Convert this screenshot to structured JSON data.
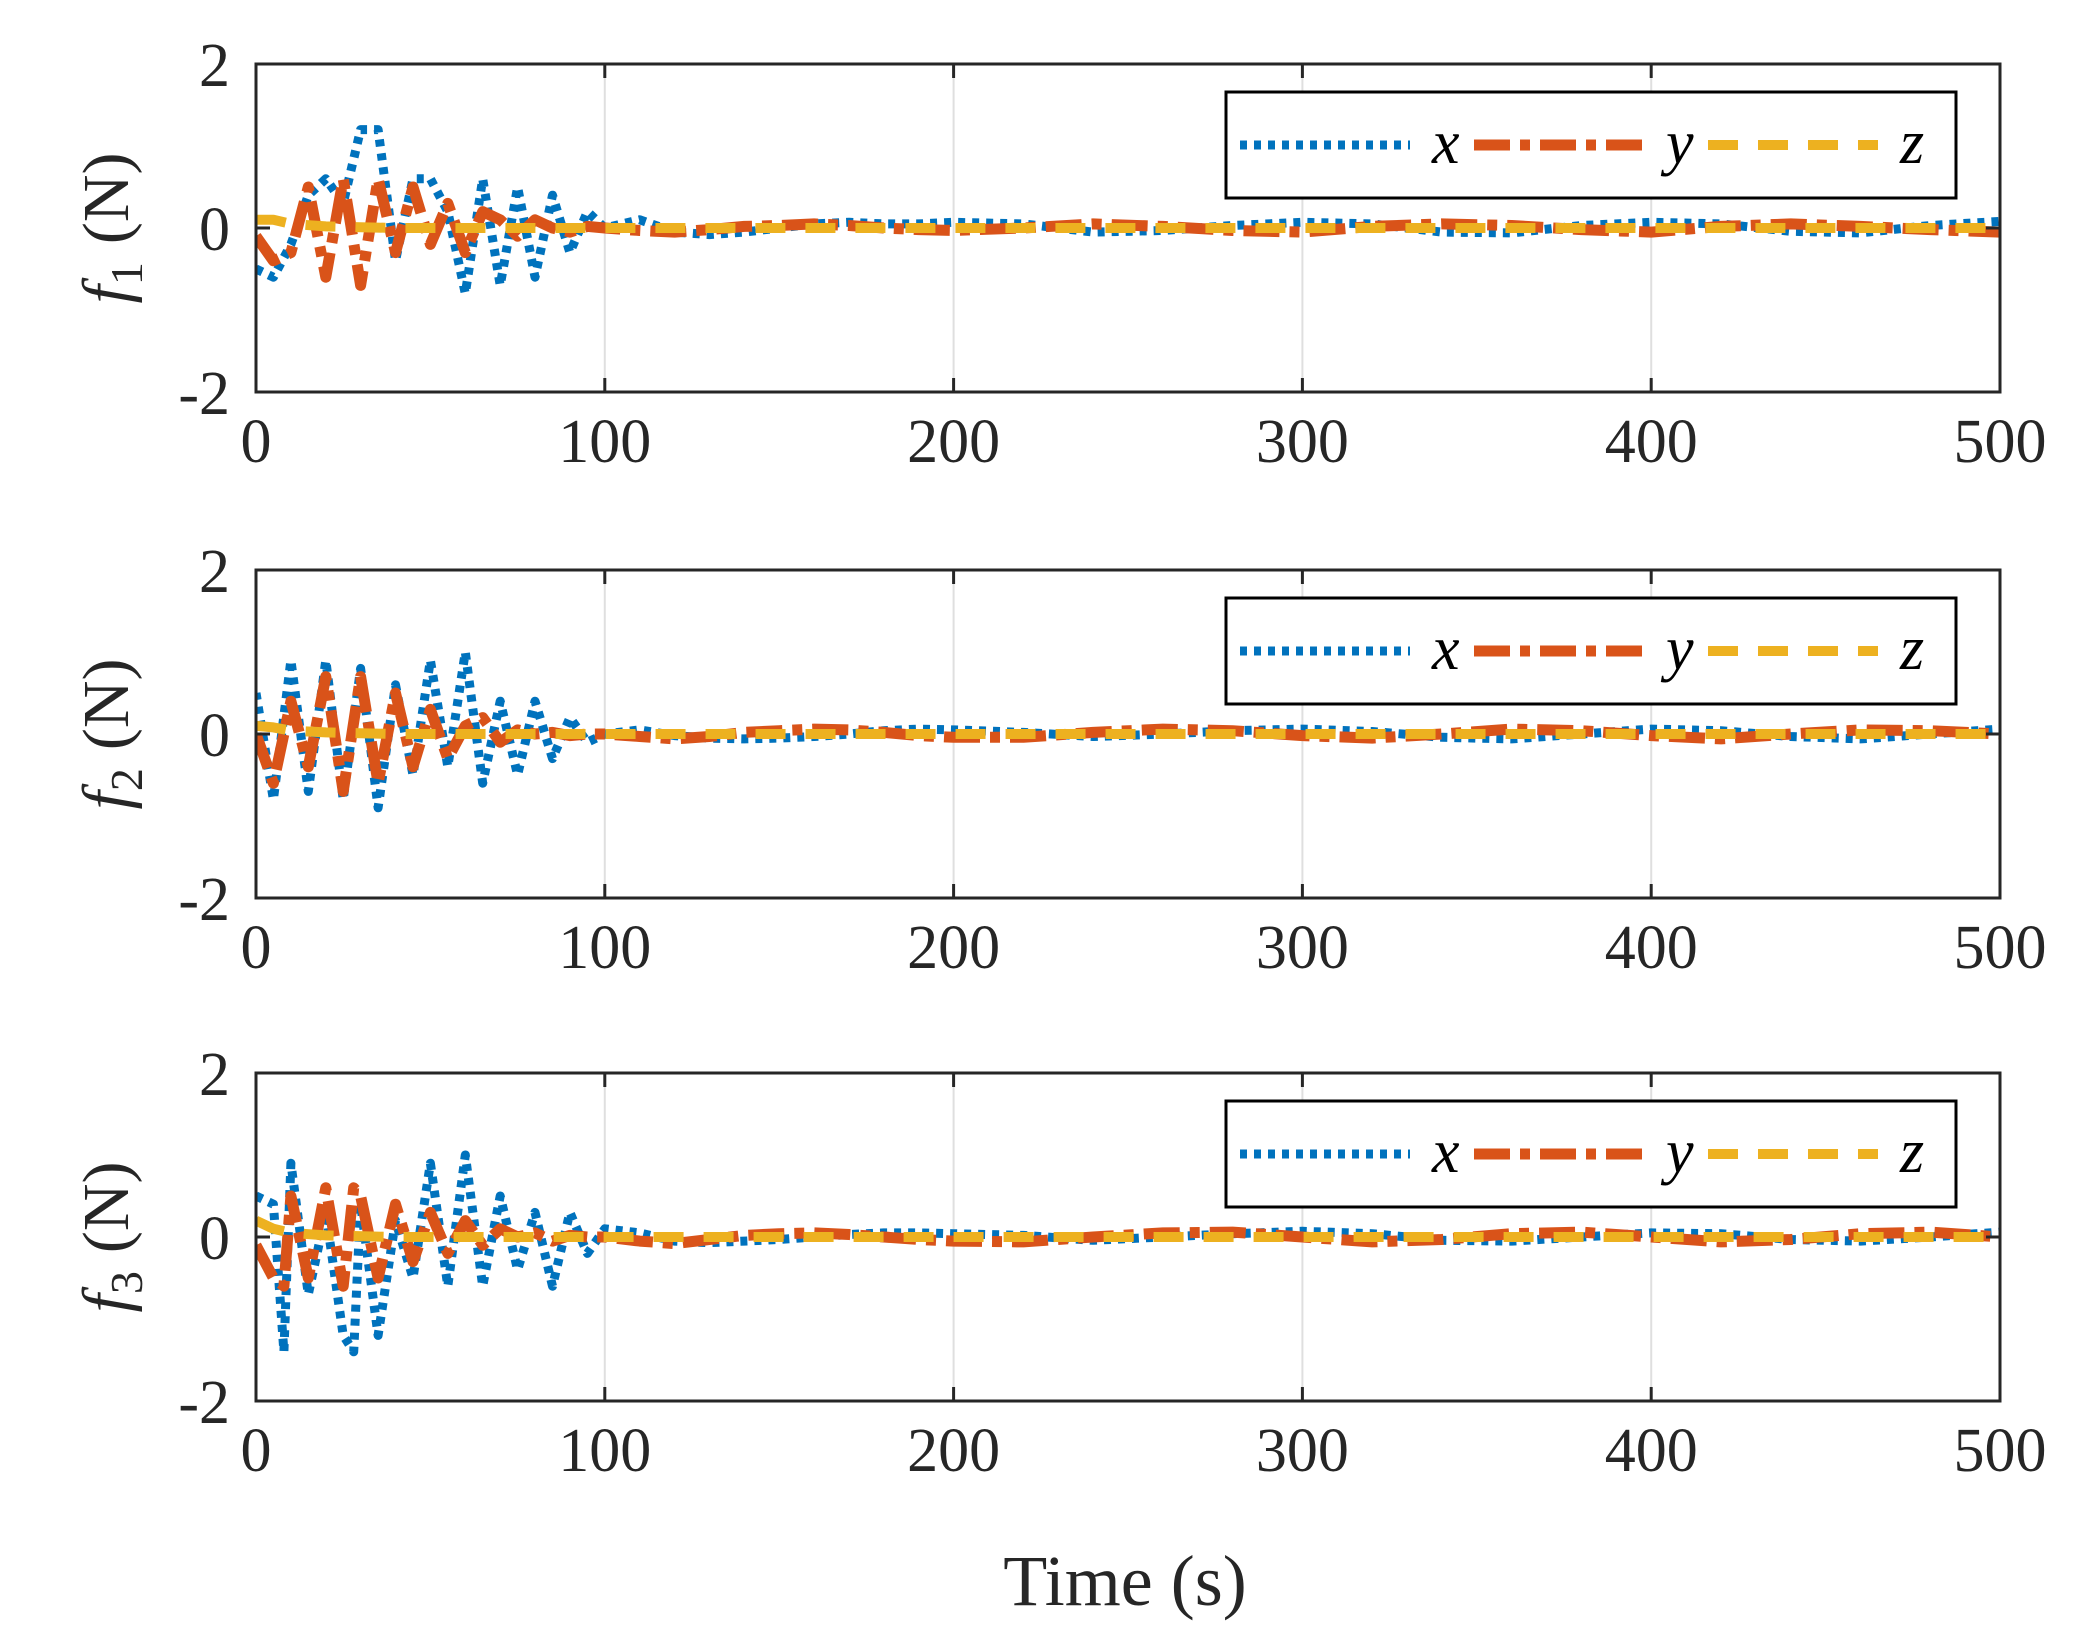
{
  "chart_data": [
    {
      "type": "line",
      "ylabel_symbol": "f",
      "ylabel_subscript": "1",
      "ylabel_unit": "(N)",
      "xlim": [
        0,
        500
      ],
      "ylim": [
        -2,
        2
      ],
      "xticks": [
        "0",
        "100",
        "200",
        "300",
        "400",
        "500"
      ],
      "yticks": [
        "2",
        "0",
        "-2"
      ],
      "legend": [
        "x",
        "y",
        "z"
      ],
      "legend_position": "top-right",
      "grid_x": true,
      "series": [
        {
          "name": "x",
          "x": [
            0,
            5,
            10,
            15,
            20,
            25,
            30,
            35,
            40,
            45,
            50,
            55,
            60,
            65,
            70,
            75,
            80,
            85,
            90,
            95,
            100,
            110,
            120,
            130,
            140,
            150,
            160,
            170,
            180,
            190,
            200,
            220,
            240,
            260,
            280,
            300,
            320,
            340,
            360,
            380,
            400,
            420,
            440,
            460,
            480,
            500
          ],
          "y": [
            -0.5,
            -0.6,
            -0.2,
            0.4,
            0.6,
            0.3,
            1.2,
            1.2,
            -0.4,
            0.6,
            0.6,
            0.2,
            -0.8,
            0.6,
            -0.7,
            0.5,
            -0.6,
            0.4,
            -0.3,
            0.2,
            0.0,
            0.1,
            -0.05,
            -0.08,
            -0.05,
            0.0,
            0.05,
            0.07,
            0.05,
            0.05,
            0.07,
            0.05,
            -0.05,
            -0.03,
            0.03,
            0.07,
            0.05,
            -0.05,
            -0.06,
            0.03,
            0.07,
            0.05,
            -0.04,
            -0.06,
            0.03,
            0.08
          ]
        },
        {
          "name": "y",
          "x": [
            0,
            5,
            10,
            15,
            20,
            25,
            30,
            35,
            40,
            45,
            50,
            55,
            60,
            65,
            70,
            75,
            80,
            85,
            90,
            95,
            100,
            110,
            120,
            130,
            140,
            150,
            160,
            170,
            180,
            190,
            200,
            220,
            240,
            260,
            280,
            300,
            320,
            340,
            360,
            380,
            400,
            420,
            440,
            460,
            480,
            500
          ],
          "y": [
            -0.1,
            -0.4,
            -0.3,
            0.5,
            -0.6,
            0.6,
            -0.7,
            0.6,
            -0.3,
            0.5,
            -0.2,
            0.3,
            -0.3,
            0.2,
            0.1,
            -0.1,
            0.1,
            0.0,
            -0.05,
            0.02,
            0.0,
            -0.03,
            -0.05,
            -0.02,
            0.02,
            0.03,
            0.05,
            0.03,
            0.0,
            -0.02,
            -0.03,
            0.0,
            0.05,
            0.02,
            -0.03,
            -0.05,
            0.02,
            0.05,
            0.03,
            -0.02,
            -0.05,
            0.02,
            0.05,
            0.02,
            -0.02,
            -0.05
          ]
        },
        {
          "name": "z",
          "x": [
            0,
            5,
            10,
            20,
            40,
            60,
            80,
            100,
            150,
            200,
            250,
            300,
            350,
            400,
            450,
            500
          ],
          "y": [
            0.1,
            0.1,
            0.05,
            0.02,
            0.0,
            0.0,
            0.0,
            0.0,
            0.0,
            0.0,
            0.0,
            0.0,
            0.0,
            0.0,
            0.0,
            0.0
          ]
        }
      ]
    },
    {
      "type": "line",
      "ylabel_symbol": "f",
      "ylabel_subscript": "2",
      "ylabel_unit": "(N)",
      "xlim": [
        0,
        500
      ],
      "ylim": [
        -2,
        2
      ],
      "xticks": [
        "0",
        "100",
        "200",
        "300",
        "400",
        "500"
      ],
      "yticks": [
        "2",
        "0",
        "-2"
      ],
      "legend": [
        "x",
        "y",
        "z"
      ],
      "legend_position": "top-right",
      "grid_x": true,
      "series": [
        {
          "name": "x",
          "x": [
            0,
            5,
            10,
            15,
            20,
            25,
            30,
            35,
            40,
            45,
            50,
            55,
            60,
            65,
            70,
            75,
            80,
            85,
            90,
            95,
            100,
            110,
            120,
            130,
            140,
            150,
            160,
            170,
            180,
            190,
            200,
            220,
            240,
            260,
            280,
            300,
            320,
            340,
            360,
            380,
            400,
            420,
            440,
            460,
            480,
            500
          ],
          "y": [
            0.5,
            -0.8,
            0.9,
            -0.7,
            0.9,
            -0.8,
            0.8,
            -0.9,
            0.6,
            -0.5,
            0.9,
            -0.4,
            1.0,
            -0.6,
            0.4,
            -0.5,
            0.4,
            -0.3,
            0.2,
            -0.1,
            0.0,
            0.05,
            -0.02,
            -0.05,
            -0.06,
            -0.05,
            -0.03,
            0.0,
            0.04,
            0.06,
            0.05,
            0.02,
            -0.03,
            0.0,
            0.04,
            0.06,
            0.03,
            -0.04,
            -0.06,
            0.0,
            0.06,
            0.04,
            -0.03,
            -0.06,
            0.0,
            0.06
          ]
        },
        {
          "name": "y",
          "x": [
            0,
            5,
            10,
            15,
            20,
            25,
            30,
            35,
            40,
            45,
            50,
            55,
            60,
            65,
            70,
            75,
            80,
            85,
            90,
            95,
            100,
            110,
            120,
            130,
            140,
            150,
            160,
            170,
            180,
            190,
            200,
            220,
            240,
            260,
            280,
            300,
            320,
            340,
            360,
            380,
            400,
            420,
            440,
            460,
            480,
            500
          ],
          "y": [
            0.0,
            -0.6,
            0.4,
            -0.4,
            0.7,
            -0.7,
            0.7,
            -0.6,
            0.5,
            -0.4,
            0.3,
            -0.3,
            0.1,
            0.2,
            -0.1,
            0.05,
            0.0,
            0.02,
            -0.02,
            0.0,
            0.0,
            -0.03,
            -0.06,
            -0.03,
            0.02,
            0.04,
            0.06,
            0.05,
            0.02,
            -0.02,
            -0.04,
            -0.04,
            0.02,
            0.06,
            0.04,
            -0.02,
            -0.05,
            0.0,
            0.06,
            0.04,
            -0.02,
            -0.06,
            0.0,
            0.05,
            0.04,
            0.0
          ]
        },
        {
          "name": "z",
          "x": [
            0,
            5,
            10,
            20,
            40,
            60,
            80,
            100,
            150,
            200,
            250,
            300,
            350,
            400,
            450,
            500
          ],
          "y": [
            0.1,
            0.08,
            0.04,
            0.02,
            0.0,
            0.0,
            0.0,
            0.0,
            0.0,
            0.0,
            0.0,
            0.0,
            0.0,
            0.0,
            0.0,
            0.0
          ]
        }
      ]
    },
    {
      "type": "line",
      "ylabel_symbol": "f",
      "ylabel_subscript": "3",
      "ylabel_unit": "(N)",
      "xlabel": "Time (s)",
      "xlim": [
        0,
        500
      ],
      "ylim": [
        -2,
        2
      ],
      "xticks": [
        "0",
        "100",
        "200",
        "300",
        "400",
        "500"
      ],
      "yticks": [
        "2",
        "0",
        "-2"
      ],
      "legend": [
        "x",
        "y",
        "z"
      ],
      "legend_position": "top-right",
      "grid_x": true,
      "series": [
        {
          "name": "x",
          "x": [
            0,
            5,
            8,
            10,
            15,
            20,
            25,
            28,
            30,
            35,
            40,
            45,
            50,
            55,
            60,
            65,
            70,
            75,
            80,
            85,
            90,
            95,
            100,
            110,
            120,
            130,
            140,
            150,
            160,
            170,
            180,
            190,
            200,
            220,
            240,
            260,
            280,
            300,
            320,
            340,
            360,
            380,
            400,
            420,
            440,
            460,
            480,
            500
          ],
          "y": [
            0.5,
            0.4,
            -1.4,
            0.9,
            -0.7,
            0.3,
            -1.2,
            -1.4,
            0.4,
            -1.2,
            0.2,
            -0.5,
            0.9,
            -0.6,
            1.0,
            -0.6,
            0.5,
            -0.4,
            0.3,
            -0.6,
            0.3,
            -0.2,
            0.1,
            0.05,
            -0.05,
            -0.07,
            -0.05,
            -0.03,
            0.0,
            0.03,
            0.05,
            0.05,
            0.04,
            0.02,
            -0.04,
            0.0,
            0.04,
            0.07,
            0.04,
            -0.04,
            -0.05,
            0.0,
            0.05,
            0.04,
            -0.03,
            -0.05,
            0.0,
            0.06
          ]
        },
        {
          "name": "y",
          "x": [
            0,
            5,
            8,
            10,
            15,
            20,
            25,
            28,
            30,
            35,
            40,
            45,
            50,
            55,
            60,
            65,
            70,
            75,
            80,
            85,
            90,
            95,
            100,
            110,
            120,
            130,
            140,
            150,
            160,
            170,
            180,
            190,
            200,
            220,
            240,
            260,
            280,
            300,
            320,
            340,
            360,
            380,
            400,
            420,
            440,
            460,
            480,
            500
          ],
          "y": [
            -0.1,
            -0.5,
            -0.6,
            0.5,
            -0.5,
            0.6,
            -0.6,
            0.6,
            0.5,
            -0.5,
            0.4,
            -0.3,
            0.3,
            -0.2,
            0.2,
            -0.1,
            0.1,
            0.0,
            0.05,
            -0.05,
            0.02,
            0.0,
            0.0,
            -0.05,
            -0.08,
            -0.03,
            0.02,
            0.04,
            0.05,
            0.03,
            0.0,
            -0.03,
            -0.05,
            -0.06,
            0.0,
            0.05,
            0.06,
            0.0,
            -0.06,
            -0.03,
            0.04,
            0.06,
            0.0,
            -0.06,
            -0.03,
            0.04,
            0.06,
            0.0
          ]
        },
        {
          "name": "z",
          "x": [
            0,
            5,
            10,
            20,
            40,
            60,
            80,
            100,
            150,
            200,
            250,
            300,
            350,
            400,
            450,
            500
          ],
          "y": [
            0.2,
            0.1,
            0.05,
            0.02,
            0.0,
            0.0,
            0.0,
            0.0,
            0.0,
            0.0,
            0.0,
            0.0,
            0.0,
            0.0,
            0.0,
            0.0
          ]
        }
      ]
    }
  ],
  "colors": {
    "x": "#0072BD",
    "y": "#D95319",
    "z": "#EDB120",
    "axis": "#262626",
    "grid": "#dfdfdf"
  }
}
